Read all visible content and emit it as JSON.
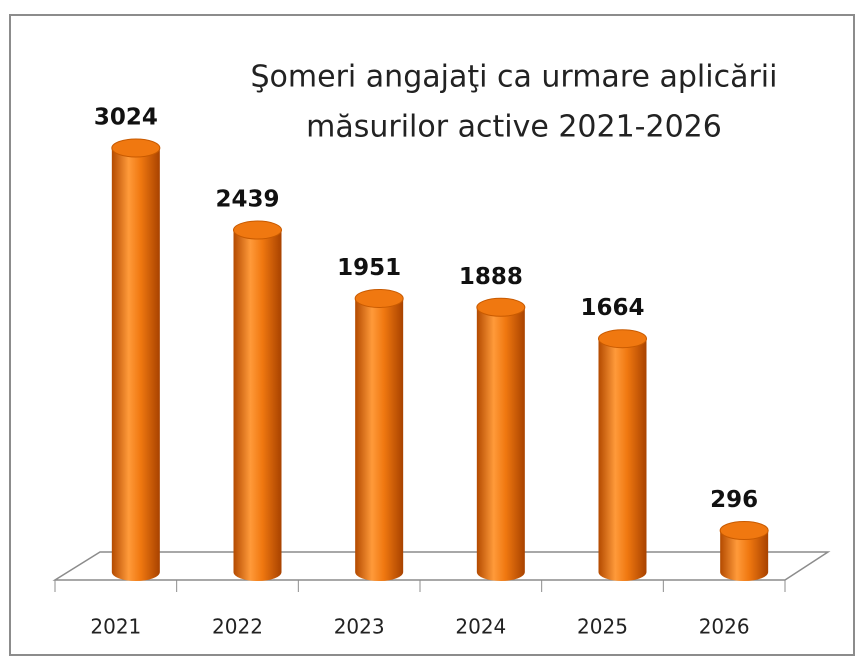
{
  "chart_data": {
    "type": "bar",
    "title": [
      "Şomeri angajaţi ca urmare aplicării",
      "măsurilor active 2021-2026"
    ],
    "categories": [
      "2021",
      "2022",
      "2023",
      "2024",
      "2025",
      "2026"
    ],
    "values": [
      3024,
      2439,
      1951,
      1888,
      1664,
      296
    ],
    "color": "#f07810"
  }
}
